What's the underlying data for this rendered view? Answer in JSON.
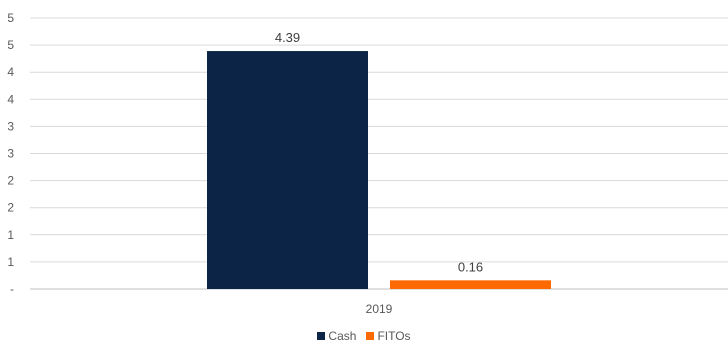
{
  "chart_data": {
    "type": "bar",
    "categories": [
      "2019"
    ],
    "series": [
      {
        "name": "Cash",
        "values": [
          4.39
        ],
        "data_label": "4.39",
        "color": "#0c2547"
      },
      {
        "name": "FITOs",
        "values": [
          0.16
        ],
        "data_label": "0.16",
        "color": "#ff6a00"
      }
    ],
    "y_tick_labels": [
      "-",
      "1",
      "1",
      "2",
      "2",
      "3",
      "3",
      "4",
      "4",
      "5",
      "5"
    ],
    "ylim": [
      0,
      5
    ],
    "grid": true,
    "legend_position": "bottom-center"
  }
}
